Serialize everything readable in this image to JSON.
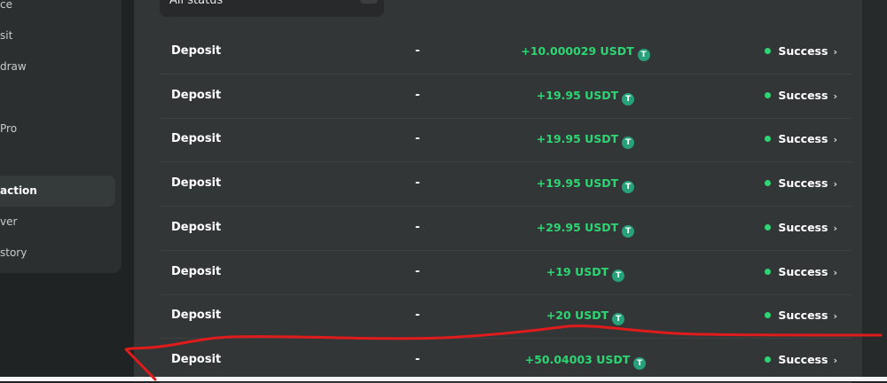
{
  "sidebar": {
    "items": [
      {
        "label": "ce"
      },
      {
        "label": "sit"
      },
      {
        "label": "draw"
      },
      {
        "label": "Pro"
      },
      {
        "label": "action",
        "active": true
      },
      {
        "label": "ver"
      },
      {
        "label": "story"
      }
    ]
  },
  "filter": {
    "status_value": "All status"
  },
  "transactions": [
    {
      "type": "Deposit",
      "detail": "-",
      "amount": "+10.000029 USDT",
      "status": "Success"
    },
    {
      "type": "Deposit",
      "detail": "-",
      "amount": "+19.95 USDT",
      "status": "Success"
    },
    {
      "type": "Deposit",
      "detail": "-",
      "amount": "+19.95 USDT",
      "status": "Success"
    },
    {
      "type": "Deposit",
      "detail": "-",
      "amount": "+19.95 USDT",
      "status": "Success"
    },
    {
      "type": "Deposit",
      "detail": "-",
      "amount": "+29.95 USDT",
      "status": "Success"
    },
    {
      "type": "Deposit",
      "detail": "-",
      "amount": "+19 USDT",
      "status": "Success"
    },
    {
      "type": "Deposit",
      "detail": "-",
      "amount": "+20 USDT",
      "status": "Success"
    },
    {
      "type": "Deposit",
      "detail": "-",
      "amount": "+50.04003 USDT",
      "status": "Success"
    }
  ],
  "colors": {
    "success": "#2ed573",
    "tether": "#26a17b",
    "annotation": "#e01b1b"
  }
}
